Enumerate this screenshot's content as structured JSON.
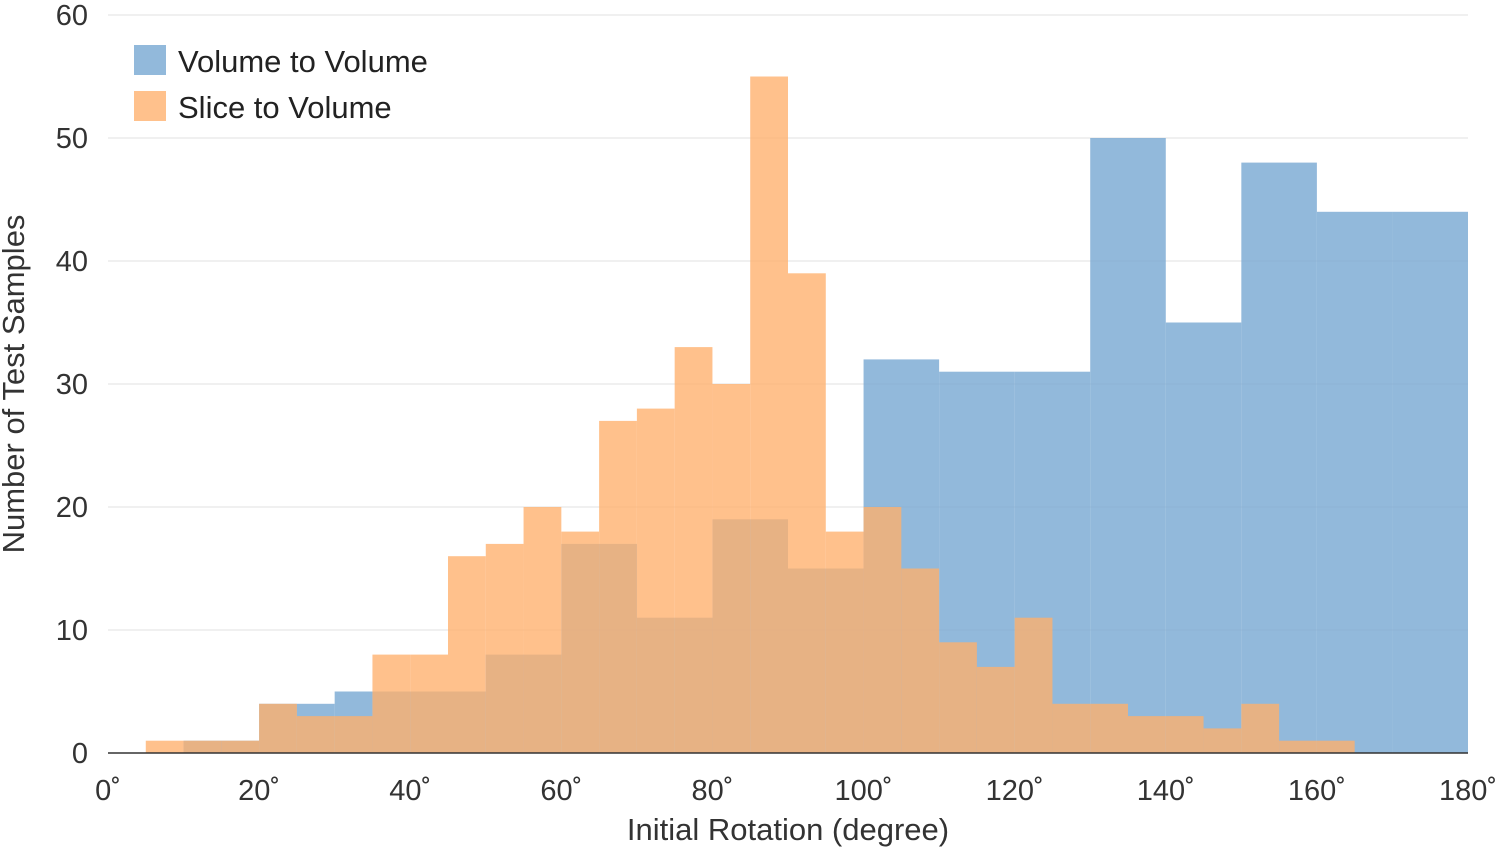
{
  "chart_data": {
    "type": "bar",
    "histogram": true,
    "xlabel": "Initial Rotation (degree)",
    "ylabel": "Number of Test Samples",
    "xlim": [
      0,
      180
    ],
    "ylim": [
      0,
      60
    ],
    "x_ticks": [
      "0˚",
      "20˚",
      "40˚",
      "60˚",
      "80˚",
      "100˚",
      "120˚",
      "140˚",
      "160˚",
      "180˚"
    ],
    "y_ticks": [
      "0",
      "10",
      "20",
      "30",
      "40",
      "50",
      "60"
    ],
    "grid": "horizontal",
    "legend_position": "top-left",
    "series": [
      {
        "name": "Volume to Volume",
        "color": "#7aaad3",
        "opacity": 0.82,
        "bin_edges": [
          0,
          10,
          20,
          25,
          30,
          35,
          40,
          45,
          50,
          55,
          60,
          65,
          70,
          75,
          80,
          85,
          90,
          95,
          100,
          110,
          120,
          130,
          140,
          150,
          160,
          170,
          180
        ],
        "counts": [
          0,
          1,
          4,
          4,
          5,
          5,
          5,
          5,
          8,
          8,
          17,
          17,
          11,
          11,
          19,
          19,
          15,
          15,
          32,
          31,
          31,
          50,
          35,
          48,
          44,
          44
        ]
      },
      {
        "name": "Slice to Volume",
        "color": "#ffb06b",
        "opacity": 0.78,
        "bin_edges": [
          5,
          10,
          15,
          20,
          25,
          30,
          35,
          40,
          45,
          50,
          55,
          60,
          65,
          70,
          75,
          80,
          85,
          90,
          95,
          100,
          105,
          110,
          115,
          120,
          125,
          130,
          135,
          140,
          145,
          150,
          155,
          160,
          165
        ],
        "counts": [
          1,
          1,
          1,
          4,
          3,
          3,
          8,
          8,
          16,
          17,
          20,
          18,
          27,
          28,
          33,
          30,
          55,
          39,
          18,
          20,
          15,
          9,
          7,
          11,
          4,
          4,
          3,
          3,
          2,
          4,
          1,
          1
        ]
      }
    ]
  }
}
